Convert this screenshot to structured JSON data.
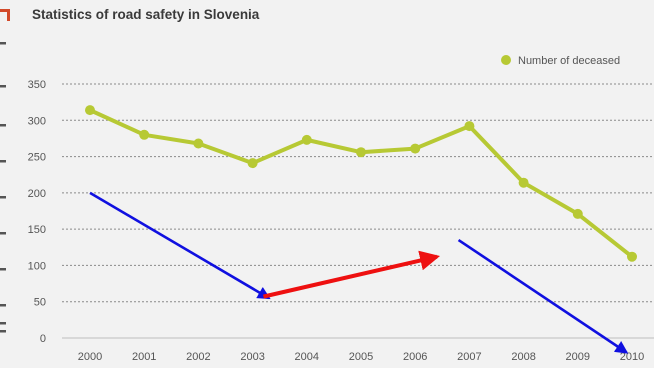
{
  "chart_data": {
    "type": "line",
    "title": "Statistics of road safety in Slovenia",
    "categories": [
      "2000",
      "2001",
      "2002",
      "2003",
      "2004",
      "2005",
      "2006",
      "2007",
      "2008",
      "2009",
      "2010"
    ],
    "series": [
      {
        "name": "Number of deceased",
        "values": [
          314,
          280,
          268,
          241,
          273,
          256,
          261,
          292,
          214,
          171,
          112
        ],
        "color": "#b7c934"
      }
    ],
    "yticks": [
      0,
      50,
      100,
      150,
      200,
      250,
      300,
      350
    ],
    "ylim": [
      0,
      350
    ],
    "grid": true,
    "legend_position": "top-right",
    "annotations": [
      {
        "type": "arrow",
        "color": "#1010e0",
        "from": {
          "x": 2000,
          "y": 200
        },
        "to": {
          "x": 2003.3,
          "y": 55
        }
      },
      {
        "type": "arrow",
        "color": "#ee1010",
        "from": {
          "x": 2003.2,
          "y": 57
        },
        "to": {
          "x": 2006.4,
          "y": 112
        }
      },
      {
        "type": "arrow",
        "color": "#1010e0",
        "from": {
          "x": 2006.8,
          "y": 135
        },
        "to": {
          "x": 2009.9,
          "y": -20
        }
      }
    ]
  }
}
